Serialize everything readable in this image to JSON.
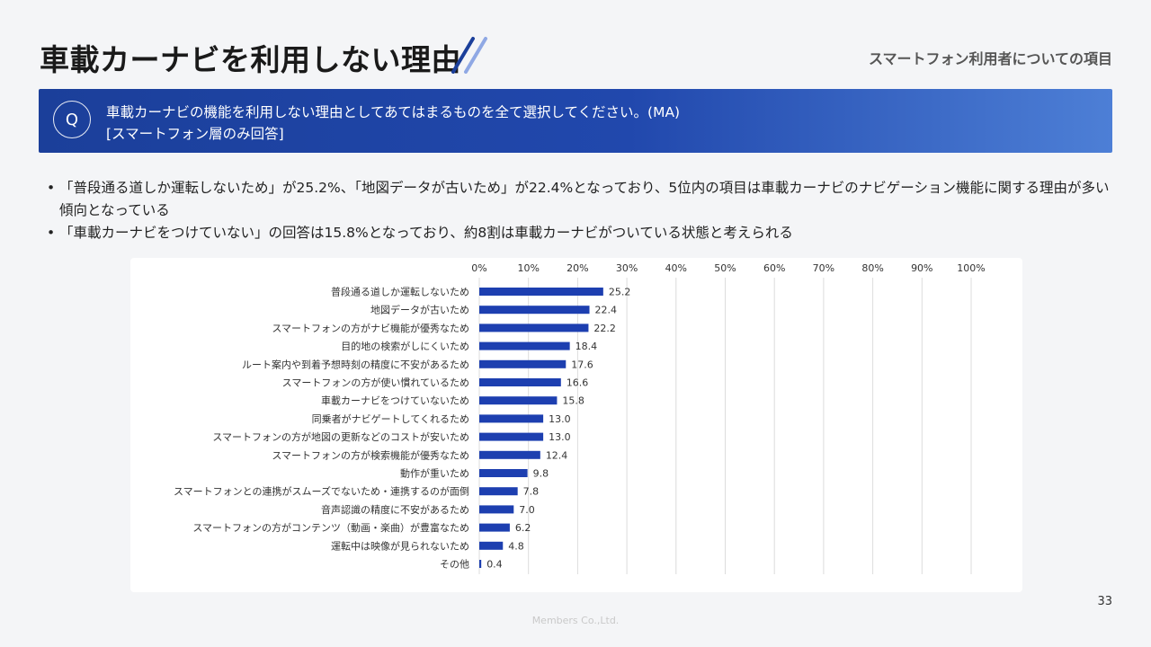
{
  "page": {
    "title": "車載カーナビを利用しない理由",
    "section_label": "スマートフォン利用者についての項目",
    "page_number": "33",
    "footer": "Members Co.,Ltd."
  },
  "question": {
    "badge": "Q",
    "line1": "車載カーナビの機能を利用しない理由としてあてはまるものを全て選択してください。(MA)",
    "line2": "[スマートフォン層のみ回答]"
  },
  "bullets": [
    "「普段通る道しか運転しないため」が25.2%、「地図データが古いため」が22.4%となっており、5位内の項目は車載カーナビのナビゲーション機能に関する理由が多い傾向となっている",
    "「車載カーナビをつけていない」の回答は15.8%となっており、約8割は車載カーナビがついている状態と考えられる"
  ],
  "colors": {
    "bar": "#1d3fb0",
    "accent": "#1b3f9a"
  },
  "chart_data": {
    "type": "bar",
    "orientation": "horizontal",
    "categories": [
      "普段通る道しか運転しないため",
      "地図データが古いため",
      "スマートフォンの方がナビ機能が優秀なため",
      "目的地の検索がしにくいため",
      "ルート案内や到着予想時刻の精度に不安があるため",
      "スマートフォンの方が使い慣れているため",
      "車載カーナビをつけていないため",
      "同乗者がナビゲートしてくれるため",
      "スマートフォンの方が地図の更新などのコストが安いため",
      "スマートフォンの方が検索機能が優秀なため",
      "動作が重いため",
      "スマートフォンとの連携がスムーズでないため・連携するのが面倒",
      "音声認識の精度に不安があるため",
      "スマートフォンの方がコンテンツ（動画・楽曲）が豊富なため",
      "運転中は映像が見られないため",
      "その他"
    ],
    "values": [
      25.2,
      22.4,
      22.2,
      18.4,
      17.6,
      16.6,
      15.8,
      13.0,
      13.0,
      12.4,
      9.8,
      7.8,
      7.0,
      6.2,
      4.8,
      0.4
    ],
    "value_labels": [
      "25.2",
      "22.4",
      "22.2",
      "18.4",
      "17.6",
      "16.6",
      "15.8",
      "13.0",
      "13.0",
      "12.4",
      "9.8",
      "7.8",
      "7.0",
      "6.2",
      "4.8",
      "0.4"
    ],
    "ticks": [
      0,
      10,
      20,
      30,
      40,
      50,
      60,
      70,
      80,
      90,
      100
    ],
    "tick_labels": [
      "0%",
      "10%",
      "20%",
      "30%",
      "40%",
      "50%",
      "60%",
      "70%",
      "80%",
      "90%",
      "100%"
    ],
    "xlim": [
      0,
      100
    ],
    "axis_position": "top",
    "grid": true,
    "title": "",
    "xlabel": "",
    "ylabel": ""
  }
}
